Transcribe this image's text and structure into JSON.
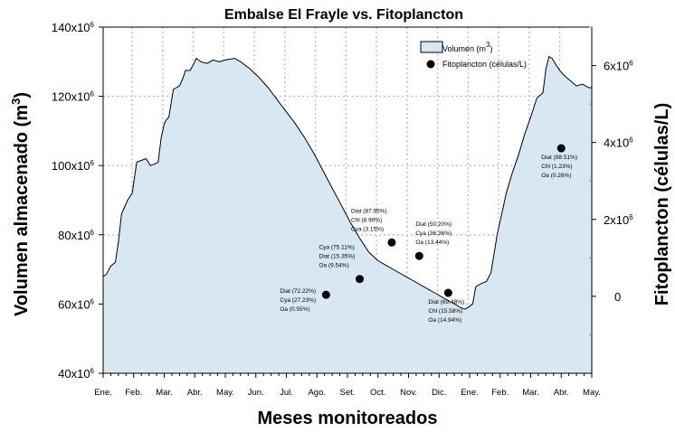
{
  "chart_data": {
    "type": "area",
    "title": "Embalse El Frayle vs. Fitoplancton",
    "xlabel": "Meses monitoreados",
    "ylabel_left": "Volumen almacenado (m3)",
    "ylabel_left_text": "Volumen almacenado (m",
    "ylabel_left_sup": "3",
    "ylabel_left_close": ")",
    "ylabel_right": "Fitoplancton (células/L)",
    "x_ticks": [
      "Ene.",
      "Feb.",
      "Mar.",
      "Abr.",
      "May.",
      "Jun.",
      "Jul.",
      "Ago.",
      "Set.",
      "Oct.",
      "Nov.",
      "Dic.",
      "Ene.",
      "Feb.",
      "Mar.",
      "Abr.",
      "May."
    ],
    "xlim": [
      0,
      16
    ],
    "left_axis": {
      "ylim": [
        40000000,
        140000000
      ],
      "ticks": [
        {
          "value": 40000000,
          "base": "40x10",
          "exp": "6"
        },
        {
          "value": 60000000,
          "base": "60x10",
          "exp": "6"
        },
        {
          "value": 80000000,
          "base": "80x10",
          "exp": "6"
        },
        {
          "value": 100000000,
          "base": "100x10",
          "exp": "6"
        },
        {
          "value": 120000000,
          "base": "120x10",
          "exp": "6"
        },
        {
          "value": 140000000,
          "base": "140x10",
          "exp": "6"
        }
      ]
    },
    "right_axis": {
      "ylim": [
        -2000000,
        7000000
      ],
      "ticks": [
        {
          "value": 0,
          "base": "0",
          "exp": ""
        },
        {
          "value": 2000000,
          "base": "2x10",
          "exp": "6"
        },
        {
          "value": 4000000,
          "base": "4x10",
          "exp": "6"
        },
        {
          "value": 6000000,
          "base": "6x10",
          "exp": "6"
        }
      ]
    },
    "grid": true,
    "legend_position": "top-right",
    "legend": [
      {
        "label": "Volumen (m",
        "sup": "3",
        "close": ")",
        "kind": "area"
      },
      {
        "label": "Fitoplancton (células/L)",
        "sup": "",
        "close": "",
        "kind": "point"
      }
    ],
    "colors": {
      "area_fill": "#d8e8f3",
      "line": "#000000",
      "grid": "#bfbfbf",
      "points": "#000000"
    },
    "series": [
      {
        "name": "Volumen (m3)",
        "axis": "left",
        "x": [
          0,
          0.1,
          0.25,
          0.4,
          0.5,
          0.6,
          0.8,
          0.95,
          1.1,
          1.25,
          1.4,
          1.55,
          1.7,
          1.8,
          1.9,
          2.0,
          2.05,
          2.15,
          2.3,
          2.4,
          2.5,
          2.6,
          2.7,
          2.85,
          3.0,
          3.05,
          3.2,
          3.4,
          3.6,
          3.8,
          4.0,
          4.3,
          4.5,
          4.8,
          5.1,
          5.4,
          5.7,
          6.0,
          6.3,
          6.6,
          6.9,
          7.2,
          7.5,
          7.8,
          8.1,
          8.4,
          8.7,
          9.0,
          9.3,
          9.6,
          9.9,
          10.2,
          10.5,
          10.8,
          11.1,
          11.4,
          11.7,
          11.85,
          11.95,
          12.1,
          12.2,
          12.4,
          12.55,
          12.7,
          12.9,
          13.0,
          13.2,
          13.4,
          13.6,
          13.8,
          14.0,
          14.2,
          14.4,
          14.5,
          14.6,
          14.7,
          14.8,
          14.95,
          15.1,
          15.3,
          15.5,
          15.7,
          15.9,
          16.0
        ],
        "values": [
          68,
          68.5,
          71,
          72,
          78,
          86,
          90,
          92,
          101,
          101.5,
          102,
          100,
          100.5,
          101,
          108,
          112,
          113,
          114,
          122,
          122.5,
          123,
          125,
          127.5,
          127.5,
          130,
          131,
          130,
          129.5,
          130.5,
          130,
          130.5,
          131,
          130,
          128,
          125.5,
          122.5,
          119,
          115.5,
          112,
          108,
          103.5,
          98.5,
          93.5,
          88.5,
          83.5,
          79,
          75,
          72.5,
          71,
          69.5,
          68,
          66.5,
          65,
          63.5,
          62,
          60.5,
          59,
          58.5,
          59,
          60,
          65,
          66,
          66.5,
          69,
          80,
          84,
          92,
          98,
          103,
          109,
          114,
          119.5,
          121,
          128,
          131.5,
          131,
          129.5,
          127.5,
          126,
          124.5,
          123,
          123.5,
          122.5,
          122.5
        ]
      },
      {
        "name": "Fitoplancton (células/L)",
        "axis": "right",
        "type": "scatter",
        "points": [
          {
            "x": 7.3,
            "y": 40000,
            "labels": [
              "Diat (72.22%)",
              "Cya (27.23%)",
              "Oa (0.55%)"
            ],
            "label_side": "left"
          },
          {
            "x": 8.4,
            "y": 450000,
            "labels": [
              "Cya (75.11%)",
              "Diat (15.35%)",
              "Oa (9.54%)"
            ],
            "label_side": "above-left"
          },
          {
            "x": 9.45,
            "y": 1400000,
            "labels": [
              "Diat (87.95%)",
              "Chl (8.90%)",
              "Cya (3.15%)"
            ],
            "label_side": "above-left"
          },
          {
            "x": 10.35,
            "y": 1050000,
            "labels": [
              "Diat (50.20%)",
              "Cya (36.36%)",
              "Oa (13.44%)"
            ],
            "label_side": "above"
          },
          {
            "x": 11.3,
            "y": 90000,
            "labels": [
              "Diat (69.48%)",
              "Chl (15.58%)",
              "Oa (14.94%)"
            ],
            "label_side": "below"
          },
          {
            "x": 15.0,
            "y": 3850000,
            "labels": [
              "Diat (98.51%)",
              "Chl (1.23%)",
              "Oa (0.26%)"
            ],
            "label_side": "below"
          }
        ]
      }
    ]
  }
}
